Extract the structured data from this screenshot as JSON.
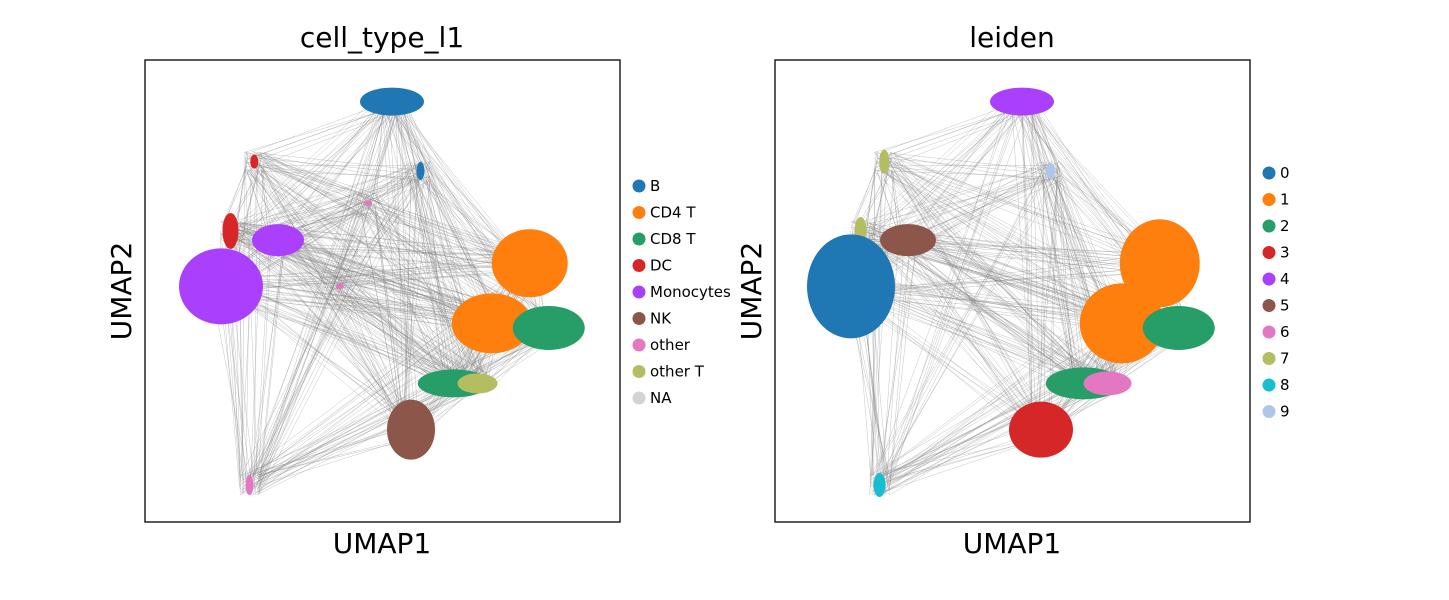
{
  "chart_data": [
    {
      "type": "scatter",
      "subtype": "UMAP embedding with PAGA/neighbor edges",
      "title": "cell_type_l1",
      "xlabel": "UMAP1",
      "ylabel": "UMAP2",
      "ticks": "none",
      "legend_position": "right",
      "edge_color": "#808080",
      "legend": [
        {
          "label": "B",
          "color": "#1f77b4"
        },
        {
          "label": "CD4 T",
          "color": "#ff7f0e"
        },
        {
          "label": "CD8 T",
          "color": "#279e68"
        },
        {
          "label": "DC",
          "color": "#d62728"
        },
        {
          "label": "Monocytes",
          "color": "#aa40fc"
        },
        {
          "label": "NK",
          "color": "#8c564b"
        },
        {
          "label": "other",
          "color": "#e377c2"
        },
        {
          "label": "other T",
          "color": "#b5bd61"
        },
        {
          "label": "NA",
          "color": "#d3d3d3"
        }
      ],
      "clusters": [
        {
          "category": "B",
          "umap1": 5.2,
          "umap2": 9.1
        },
        {
          "category": "B",
          "umap1": 5.8,
          "umap2": 7.6
        },
        {
          "category": "DC",
          "umap1": 2.3,
          "umap2": 7.8
        },
        {
          "category": "DC",
          "umap1": 1.8,
          "umap2": 6.3
        },
        {
          "category": "Monocytes",
          "umap1": 1.6,
          "umap2": 5.1
        },
        {
          "category": "Monocytes",
          "umap1": 2.8,
          "umap2": 6.1
        },
        {
          "category": "other",
          "umap1": 4.7,
          "umap2": 6.9
        },
        {
          "category": "other",
          "umap1": 4.1,
          "umap2": 5.1
        },
        {
          "category": "other",
          "umap1": 2.2,
          "umap2": 0.8
        },
        {
          "category": "CD4 T",
          "umap1": 8.1,
          "umap2": 5.6
        },
        {
          "category": "CD4 T",
          "umap1": 7.3,
          "umap2": 4.3
        },
        {
          "category": "CD8 T",
          "umap1": 8.5,
          "umap2": 4.2
        },
        {
          "category": "CD8 T",
          "umap1": 6.5,
          "umap2": 3.0
        },
        {
          "category": "other T",
          "umap1": 7.0,
          "umap2": 3.0
        },
        {
          "category": "NK",
          "umap1": 5.6,
          "umap2": 2.0
        }
      ]
    },
    {
      "type": "scatter",
      "subtype": "UMAP embedding with PAGA/neighbor edges",
      "title": "leiden",
      "xlabel": "UMAP1",
      "ylabel": "UMAP2",
      "ticks": "none",
      "legend_position": "right",
      "edge_color": "#808080",
      "legend": [
        {
          "label": "0",
          "color": "#1f77b4"
        },
        {
          "label": "1",
          "color": "#ff7f0e"
        },
        {
          "label": "2",
          "color": "#279e68"
        },
        {
          "label": "3",
          "color": "#d62728"
        },
        {
          "label": "4",
          "color": "#aa40fc"
        },
        {
          "label": "5",
          "color": "#8c564b"
        },
        {
          "label": "6",
          "color": "#e377c2"
        },
        {
          "label": "7",
          "color": "#b5bd61"
        },
        {
          "label": "8",
          "color": "#17becf"
        },
        {
          "label": "9",
          "color": "#aec7e8"
        }
      ],
      "clusters": [
        {
          "category": "4",
          "umap1": 5.2,
          "umap2": 9.1
        },
        {
          "category": "9",
          "umap1": 5.8,
          "umap2": 7.6
        },
        {
          "category": "7",
          "umap1": 2.3,
          "umap2": 7.8
        },
        {
          "category": "7",
          "umap1": 1.8,
          "umap2": 6.3
        },
        {
          "category": "0",
          "umap1": 1.6,
          "umap2": 5.1
        },
        {
          "category": "5",
          "umap1": 2.8,
          "umap2": 6.1
        },
        {
          "category": "1",
          "umap1": 8.1,
          "umap2": 5.6
        },
        {
          "category": "1",
          "umap1": 7.3,
          "umap2": 4.3
        },
        {
          "category": "2",
          "umap1": 8.5,
          "umap2": 4.2
        },
        {
          "category": "2",
          "umap1": 6.5,
          "umap2": 3.0
        },
        {
          "category": "6",
          "umap1": 7.0,
          "umap2": 3.0
        },
        {
          "category": "3",
          "umap1": 5.6,
          "umap2": 2.0
        },
        {
          "category": "8",
          "umap1": 2.2,
          "umap2": 0.8
        }
      ]
    }
  ]
}
